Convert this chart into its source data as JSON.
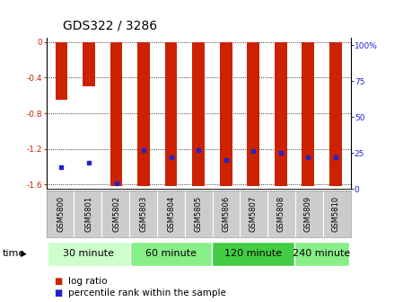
{
  "title": "GDS322 / 3286",
  "samples": [
    "GSM5800",
    "GSM5801",
    "GSM5802",
    "GSM5803",
    "GSM5804",
    "GSM5805",
    "GSM5806",
    "GSM5807",
    "GSM5808",
    "GSM5809",
    "GSM5810"
  ],
  "log_ratios": [
    -0.65,
    -0.5,
    -1.62,
    -1.62,
    -1.62,
    -1.62,
    -1.62,
    -1.62,
    -1.62,
    -1.62,
    -1.62
  ],
  "percentile_ranks": [
    15,
    18,
    4,
    27,
    22,
    27,
    20,
    26,
    25,
    22,
    22
  ],
  "ylim_left": [
    -1.65,
    0.05
  ],
  "ylim_right": [
    0,
    105
  ],
  "yticks_left": [
    0,
    -0.4,
    -0.8,
    -1.2,
    -1.6
  ],
  "yticks_right": [
    0,
    25,
    50,
    75,
    100
  ],
  "ytick_labels_right": [
    "0",
    "25",
    "50",
    "75",
    "100%"
  ],
  "bar_color": "#cc2200",
  "dot_color": "#2222cc",
  "bar_width": 0.45,
  "groups": [
    {
      "label": "30 minute",
      "samples": [
        0,
        1,
        2
      ],
      "color": "#ccffcc"
    },
    {
      "label": "60 minute",
      "samples": [
        3,
        4,
        5
      ],
      "color": "#88ee88"
    },
    {
      "label": "120 minute",
      "samples": [
        6,
        7,
        8
      ],
      "color": "#44cc44"
    },
    {
      "label": "240 minute",
      "samples": [
        9,
        10
      ],
      "color": "#88ee88"
    }
  ],
  "time_label": "time",
  "legend_log_ratio": "log ratio",
  "legend_percentile": "percentile rank within the sample",
  "bg_color": "#ffffff",
  "tick_color_left": "#cc2200",
  "tick_color_right": "#2222cc",
  "title_fontsize": 10,
  "tick_fontsize": 6.5,
  "sample_fontsize": 6.0,
  "group_label_fontsize": 8,
  "legend_fontsize": 7.5,
  "label_box_color": "#cccccc",
  "label_box_border": "#999999"
}
